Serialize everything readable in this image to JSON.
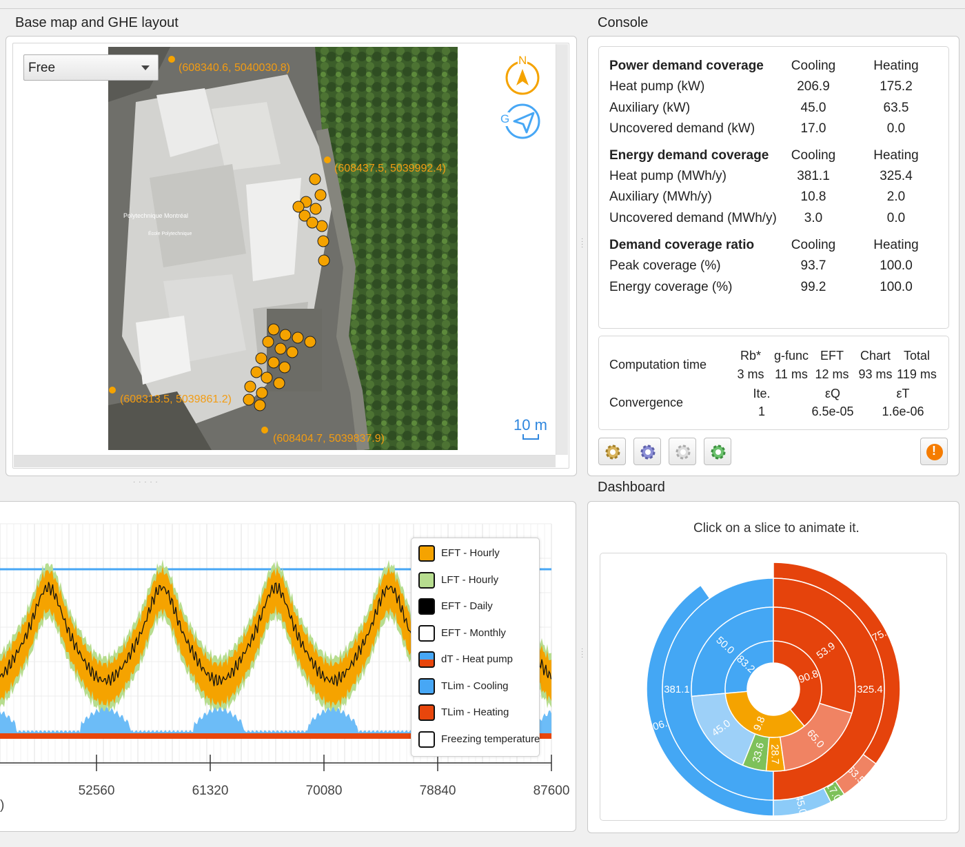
{
  "map_section": {
    "title": "Base map and GHE layout",
    "mode_select": "Free",
    "coords": {
      "top_left": "(608340.6, 5040030.8)",
      "right": "(608437.5, 5039992.4)",
      "bottom_left": "(608313.5, 5039861.2)",
      "bottom_right": "(608404.7, 5039837.9)"
    },
    "labels": {
      "building": "Polytechnique Montréal",
      "school": "École Polytechnique"
    },
    "scale": "10 m",
    "compass_label": "N",
    "locate_label": "G"
  },
  "console": {
    "title": "Console",
    "power": {
      "header": "Power demand coverage",
      "col1": "Cooling",
      "col2": "Heating",
      "rows": [
        {
          "label": "Heat pump (kW)",
          "cooling": "206.9",
          "heating": "175.2"
        },
        {
          "label": "Auxiliary (kW)",
          "cooling": "45.0",
          "heating": "63.5"
        },
        {
          "label": "Uncovered demand (kW)",
          "cooling": "17.0",
          "heating": "0.0"
        }
      ]
    },
    "energy": {
      "header": "Energy demand coverage",
      "col1": "Cooling",
      "col2": "Heating",
      "rows": [
        {
          "label": "Heat pump (MWh/y)",
          "cooling": "381.1",
          "heating": "325.4"
        },
        {
          "label": "Auxiliary (MWh/y)",
          "cooling": "10.8",
          "heating": "2.0"
        },
        {
          "label": "Uncovered demand (MWh/y)",
          "cooling": "3.0",
          "heating": "0.0"
        }
      ]
    },
    "ratio": {
      "header": "Demand coverage ratio",
      "col1": "Cooling",
      "col2": "Heating",
      "rows": [
        {
          "label": "Peak coverage (%)",
          "cooling": "93.7",
          "heating": "100.0"
        },
        {
          "label": "Energy coverage (%)",
          "cooling": "99.2",
          "heating": "100.0"
        }
      ]
    },
    "computation": {
      "label": "Computation time",
      "headers": [
        "Rb*",
        "g-func",
        "EFT",
        "Chart",
        "Total"
      ],
      "values": [
        "3 ms",
        "11 ms",
        "12 ms",
        "93 ms",
        "119 ms"
      ]
    },
    "convergence": {
      "label": "Convergence",
      "headers": [
        "Ite.",
        "εQ",
        "εT"
      ],
      "values": [
        "1",
        "6.5e-05",
        "1.6e-06"
      ]
    },
    "warning_symbol": "!"
  },
  "chart": {
    "legend": [
      "EFT - Hourly",
      "LFT - Hourly",
      "EFT - Daily",
      "EFT - Monthly",
      "dT - Heat pump",
      "TLim - Cooling",
      "TLim - Heating",
      "Freezing temperature"
    ],
    "legend_colors": [
      "#f5a300",
      "#b7dd8f",
      "#000000",
      "#ffffff",
      "#e55a1b",
      "#47a7f5",
      "#e8460c",
      "#ffffff"
    ],
    "x_ticks": [
      "52560",
      "61320",
      "70080",
      "78840",
      "87600"
    ],
    "x_label_fragment": ")"
  },
  "chart_data": {
    "type": "line",
    "x_ticks": [
      52560,
      61320,
      70080,
      78840,
      87600
    ],
    "series": [
      {
        "name": "EFT - Hourly"
      },
      {
        "name": "LFT - Hourly"
      },
      {
        "name": "EFT - Daily"
      },
      {
        "name": "EFT - Monthly"
      },
      {
        "name": "dT - Heat pump"
      },
      {
        "name": "TLim - Cooling"
      },
      {
        "name": "TLim - Heating"
      },
      {
        "name": "Freezing temperature"
      }
    ]
  },
  "dashboard": {
    "title": "Dashboard",
    "hint": "Click on a slice to animate it.",
    "sunburst": {
      "outer": [
        {
          "label": "206.9",
          "color": "#44a7f4"
        },
        {
          "label": "45.0",
          "color": "#8ccbf8"
        },
        {
          "label": "17.0",
          "color": "#7ec15a"
        },
        {
          "label": "63.5",
          "color": "#f08363"
        },
        {
          "label": "175.2",
          "color": "#e5430c"
        }
      ],
      "middle": [
        {
          "label": "381.1",
          "color": "#44a7f4"
        },
        {
          "label": "325.4",
          "color": "#e5430c"
        }
      ],
      "inner": [
        {
          "label": "50.0",
          "color": "#44a7f4"
        },
        {
          "label": "45.0",
          "color": "#9dd0f8"
        },
        {
          "label": "33.6",
          "color": "#7ec15a"
        },
        {
          "label": "28.7",
          "color": "#f5a300"
        },
        {
          "label": "65.0",
          "color": "#f08363"
        },
        {
          "label": "53.9",
          "color": "#e5430c"
        }
      ],
      "core": [
        {
          "label": "83.2",
          "color": "#44a7f4"
        },
        {
          "label": "9.8",
          "color": "#f5a300"
        },
        {
          "label": "90.8",
          "color": "#e5430c"
        }
      ]
    }
  },
  "colors": {
    "accent_orange": "#f5a300",
    "accent_blue": "#2e86de"
  }
}
